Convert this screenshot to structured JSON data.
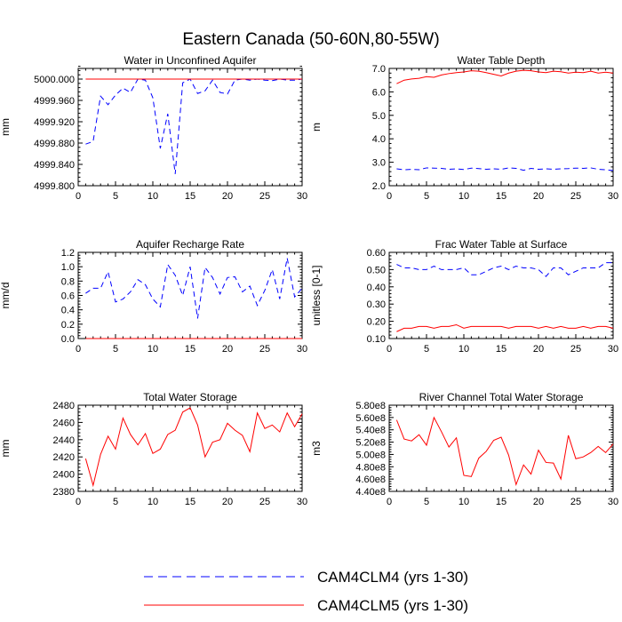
{
  "title": "Eastern Canada (50-60N,80-55W)",
  "colors": {
    "cam4": "#0000ff",
    "cam5": "#ff0000"
  },
  "legend": [
    {
      "label": "CAM4CLM4 (yrs 1-30)",
      "style": "dashed",
      "color": "#0000ff"
    },
    {
      "label": "CAM4CLM5 (yrs 1-30)",
      "style": "solid",
      "color": "#ff0000"
    }
  ],
  "chart_data": [
    {
      "type": "line",
      "title": "Water in Unconfined Aquifer",
      "ylabel": "mm",
      "xlim": [
        0,
        30
      ],
      "ylim": [
        4999.8,
        5000.02
      ],
      "xticks": [
        0,
        5,
        10,
        15,
        20,
        25,
        30
      ],
      "xtick_labels": [
        "0",
        "5",
        "10",
        "15",
        "20",
        "25",
        "30"
      ],
      "yticks": [
        4999.8,
        4999.84,
        4999.88,
        4999.92,
        4999.96,
        5000.0
      ],
      "ytick_labels": [
        "4999.800",
        "4999.840",
        "4999.880",
        "4999.920",
        "4999.960",
        "5000.000"
      ],
      "x": [
        1,
        2,
        3,
        4,
        5,
        6,
        7,
        8,
        9,
        10,
        11,
        12,
        13,
        14,
        15,
        16,
        17,
        18,
        19,
        20,
        21,
        22,
        23,
        24,
        25,
        26,
        27,
        28,
        29,
        30
      ],
      "series": [
        {
          "name": "CAM4CLM4 (yrs 1-30)",
          "style": "dashed",
          "values": [
            4999.878,
            4999.883,
            4999.968,
            4999.952,
            4999.97,
            4999.983,
            4999.975,
            5000.0,
            4999.998,
            4999.965,
            4999.87,
            4999.935,
            4999.822,
            4999.993,
            5000.0,
            4999.973,
            4999.978,
            4999.998,
            4999.975,
            4999.972,
            4999.998,
            5000.0,
            4999.998,
            5000.0,
            4999.998,
            4999.997,
            5000.0,
            4999.998,
            4999.998,
            5000.0
          ]
        },
        {
          "name": "CAM4CLM5 (yrs 1-30)",
          "style": "solid",
          "values": [
            5000.0,
            5000.0,
            5000.0,
            5000.0,
            5000.0,
            5000.0,
            5000.0,
            5000.0,
            5000.0,
            5000.0,
            5000.0,
            5000.0,
            5000.0,
            5000.0,
            5000.0,
            5000.0,
            5000.0,
            5000.0,
            5000.0,
            5000.0,
            5000.0,
            5000.0,
            5000.0,
            5000.0,
            5000.0,
            5000.0,
            5000.0,
            5000.0,
            5000.0,
            5000.0
          ]
        }
      ]
    },
    {
      "type": "line",
      "title": "Water Table Depth",
      "ylabel": "m",
      "xlim": [
        0,
        30
      ],
      "ylim": [
        2.0,
        7.0
      ],
      "xticks": [
        0,
        5,
        10,
        15,
        20,
        25,
        30
      ],
      "xtick_labels": [
        "0",
        "5",
        "10",
        "15",
        "20",
        "25",
        "30"
      ],
      "yticks": [
        2.0,
        3.0,
        4.0,
        5.0,
        6.0,
        7.0
      ],
      "ytick_labels": [
        "2.0",
        "3.0",
        "4.0",
        "5.0",
        "6.0",
        "7.0"
      ],
      "x": [
        1,
        2,
        3,
        4,
        5,
        6,
        7,
        8,
        9,
        10,
        11,
        12,
        13,
        14,
        15,
        16,
        17,
        18,
        19,
        20,
        21,
        22,
        23,
        24,
        25,
        26,
        27,
        28,
        29,
        30
      ],
      "series": [
        {
          "name": "CAM4CLM4 (yrs 1-30)",
          "style": "dashed",
          "values": [
            2.72,
            2.68,
            2.7,
            2.68,
            2.76,
            2.75,
            2.74,
            2.7,
            2.72,
            2.69,
            2.75,
            2.73,
            2.7,
            2.72,
            2.7,
            2.76,
            2.74,
            2.66,
            2.74,
            2.7,
            2.72,
            2.7,
            2.72,
            2.73,
            2.75,
            2.74,
            2.76,
            2.7,
            2.68,
            2.65
          ]
        },
        {
          "name": "CAM4CLM5 (yrs 1-30)",
          "style": "solid",
          "values": [
            6.35,
            6.5,
            6.55,
            6.58,
            6.65,
            6.62,
            6.72,
            6.78,
            6.82,
            6.85,
            6.9,
            6.88,
            6.82,
            6.75,
            6.68,
            6.8,
            6.88,
            6.92,
            6.9,
            6.85,
            6.82,
            6.88,
            6.86,
            6.8,
            6.84,
            6.82,
            6.88,
            6.8,
            6.84,
            6.8
          ]
        }
      ]
    },
    {
      "type": "line",
      "title": "Aquifer Recharge Rate",
      "ylabel": "mm/d",
      "xlim": [
        0,
        30
      ],
      "ylim": [
        0.0,
        1.2
      ],
      "xticks": [
        0,
        5,
        10,
        15,
        20,
        25,
        30
      ],
      "xtick_labels": [
        "0",
        "5",
        "10",
        "15",
        "20",
        "25",
        "30"
      ],
      "yticks": [
        0.0,
        0.2,
        0.4,
        0.6,
        0.8,
        1.0,
        1.2
      ],
      "ytick_labels": [
        "0.0",
        "0.2",
        "0.4",
        "0.6",
        "0.8",
        "1.0",
        "1.2"
      ],
      "x": [
        1,
        2,
        3,
        4,
        5,
        6,
        7,
        8,
        9,
        10,
        11,
        12,
        13,
        14,
        15,
        16,
        17,
        18,
        19,
        20,
        21,
        22,
        23,
        24,
        25,
        26,
        27,
        28,
        29,
        30
      ],
      "series": [
        {
          "name": "CAM4CLM4 (yrs 1-30)",
          "style": "dashed",
          "values": [
            0.63,
            0.7,
            0.7,
            0.93,
            0.51,
            0.55,
            0.65,
            0.82,
            0.75,
            0.55,
            0.44,
            1.03,
            0.88,
            0.6,
            1.0,
            0.28,
            0.99,
            0.85,
            0.62,
            0.85,
            0.86,
            0.65,
            0.73,
            0.46,
            0.67,
            0.96,
            0.55,
            1.12,
            0.58,
            0.7
          ]
        },
        {
          "name": "CAM4CLM5 (yrs 1-30)",
          "style": "solid",
          "values": [
            0.0,
            0.0,
            0.0,
            0.0,
            0.0,
            0.0,
            0.0,
            0.0,
            0.0,
            0.0,
            0.0,
            0.0,
            0.0,
            0.0,
            0.0,
            0.0,
            0.0,
            0.0,
            0.0,
            0.0,
            0.0,
            0.0,
            0.0,
            0.0,
            0.0,
            0.0,
            0.0,
            0.0,
            0.0,
            0.0
          ]
        }
      ]
    },
    {
      "type": "line",
      "title": "Frac Water Table at Surface",
      "ylabel": "unitless [0-1]",
      "xlim": [
        0,
        30
      ],
      "ylim": [
        0.1,
        0.6
      ],
      "xticks": [
        0,
        5,
        10,
        15,
        20,
        25,
        30
      ],
      "xtick_labels": [
        "0",
        "5",
        "10",
        "15",
        "20",
        "25",
        "30"
      ],
      "yticks": [
        0.1,
        0.2,
        0.3,
        0.4,
        0.5,
        0.6
      ],
      "ytick_labels": [
        "0.10",
        "0.20",
        "0.30",
        "0.40",
        "0.50",
        "0.60"
      ],
      "x": [
        1,
        2,
        3,
        4,
        5,
        6,
        7,
        8,
        9,
        10,
        11,
        12,
        13,
        14,
        15,
        16,
        17,
        18,
        19,
        20,
        21,
        22,
        23,
        24,
        25,
        26,
        27,
        28,
        29,
        30
      ],
      "series": [
        {
          "name": "CAM4CLM4 (yrs 1-30)",
          "style": "dashed",
          "values": [
            0.53,
            0.51,
            0.51,
            0.5,
            0.5,
            0.52,
            0.5,
            0.5,
            0.5,
            0.51,
            0.47,
            0.47,
            0.49,
            0.51,
            0.52,
            0.5,
            0.52,
            0.51,
            0.51,
            0.5,
            0.46,
            0.51,
            0.51,
            0.47,
            0.49,
            0.51,
            0.51,
            0.51,
            0.54,
            0.54
          ]
        },
        {
          "name": "CAM4CLM5 (yrs 1-30)",
          "style": "solid",
          "values": [
            0.14,
            0.16,
            0.16,
            0.17,
            0.17,
            0.16,
            0.17,
            0.17,
            0.18,
            0.16,
            0.17,
            0.17,
            0.17,
            0.17,
            0.17,
            0.16,
            0.17,
            0.17,
            0.17,
            0.16,
            0.17,
            0.16,
            0.17,
            0.16,
            0.16,
            0.17,
            0.16,
            0.17,
            0.17,
            0.16
          ]
        }
      ]
    },
    {
      "type": "line",
      "title": "Total Water Storage",
      "ylabel": "mm",
      "xlim": [
        0,
        30
      ],
      "ylim": [
        2380,
        2480
      ],
      "xticks": [
        0,
        5,
        10,
        15,
        20,
        25,
        30
      ],
      "xtick_labels": [
        "0",
        "5",
        "10",
        "15",
        "20",
        "25",
        "30"
      ],
      "yticks": [
        2380,
        2400,
        2420,
        2440,
        2460,
        2480
      ],
      "ytick_labels": [
        "2380",
        "2400",
        "2420",
        "2440",
        "2460",
        "2480"
      ],
      "x": [
        1,
        2,
        3,
        4,
        5,
        6,
        7,
        8,
        9,
        10,
        11,
        12,
        13,
        14,
        15,
        16,
        17,
        18,
        19,
        20,
        21,
        22,
        23,
        24,
        25,
        26,
        27,
        28,
        29,
        30
      ],
      "series": [
        {
          "name": "CAM4CLM5 (yrs 1-30)",
          "style": "solid",
          "values": [
            2418,
            2387,
            2423,
            2444,
            2429,
            2465,
            2446,
            2434,
            2447,
            2424,
            2429,
            2446,
            2451,
            2472,
            2477,
            2457,
            2420,
            2437,
            2440,
            2459,
            2451,
            2445,
            2426,
            2471,
            2453,
            2457,
            2449,
            2471,
            2455,
            2470
          ]
        }
      ]
    },
    {
      "type": "line",
      "title": "River Channel Total Water Storage",
      "ylabel": "m3",
      "xlim": [
        0,
        30
      ],
      "ylim": [
        440000000,
        580000000
      ],
      "xticks": [
        0,
        5,
        10,
        15,
        20,
        25,
        30
      ],
      "xtick_labels": [
        "0",
        "5",
        "10",
        "15",
        "20",
        "25",
        "30"
      ],
      "yticks": [
        440000000,
        460000000,
        480000000,
        500000000,
        520000000,
        540000000,
        560000000,
        580000000
      ],
      "ytick_labels": [
        "4.40e8",
        "4.60e8",
        "4.80e8",
        "5.00e8",
        "5.20e8",
        "5.40e8",
        "5.60e8",
        "5.80e8"
      ],
      "x": [
        1,
        2,
        3,
        4,
        5,
        6,
        7,
        8,
        9,
        10,
        11,
        12,
        13,
        14,
        15,
        16,
        17,
        18,
        19,
        20,
        21,
        22,
        23,
        24,
        25,
        26,
        27,
        28,
        29,
        30
      ],
      "series": [
        {
          "name": "CAM4CLM5 (yrs 1-30)",
          "style": "solid",
          "values": [
            556000000,
            525000000,
            522000000,
            532000000,
            515000000,
            560000000,
            537000000,
            512000000,
            527000000,
            466000000,
            464000000,
            494000000,
            505000000,
            523000000,
            528000000,
            499000000,
            451000000,
            483000000,
            468000000,
            507000000,
            487000000,
            486000000,
            460000000,
            531000000,
            493000000,
            496000000,
            503000000,
            513000000,
            503000000,
            517000000
          ]
        }
      ]
    }
  ]
}
